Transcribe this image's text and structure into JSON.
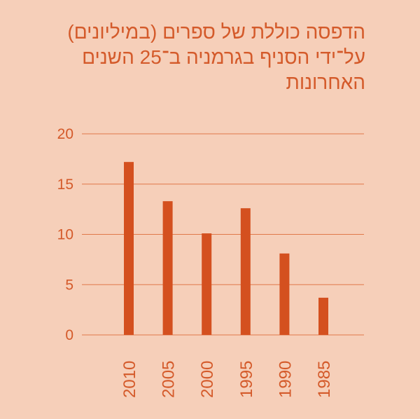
{
  "chart_data": {
    "type": "bar",
    "title": "הדפסה כוללת של ספרים (במיליונים) על־ידי הסניף בגרמניה ב־25 השנים האחרונות",
    "categories": [
      "2010",
      "2005",
      "2000",
      "1995",
      "1990",
      "1985"
    ],
    "values": [
      17.2,
      13.3,
      10.1,
      12.6,
      8.1,
      3.7
    ],
    "yticks": [
      0,
      5,
      10,
      15,
      20
    ],
    "ylim": [
      0,
      20
    ],
    "xlabel": "",
    "ylabel": "",
    "grid": true,
    "colors": {
      "bar": "#d4501f",
      "grid": "#e0794a",
      "text": "#d45a2a"
    }
  }
}
